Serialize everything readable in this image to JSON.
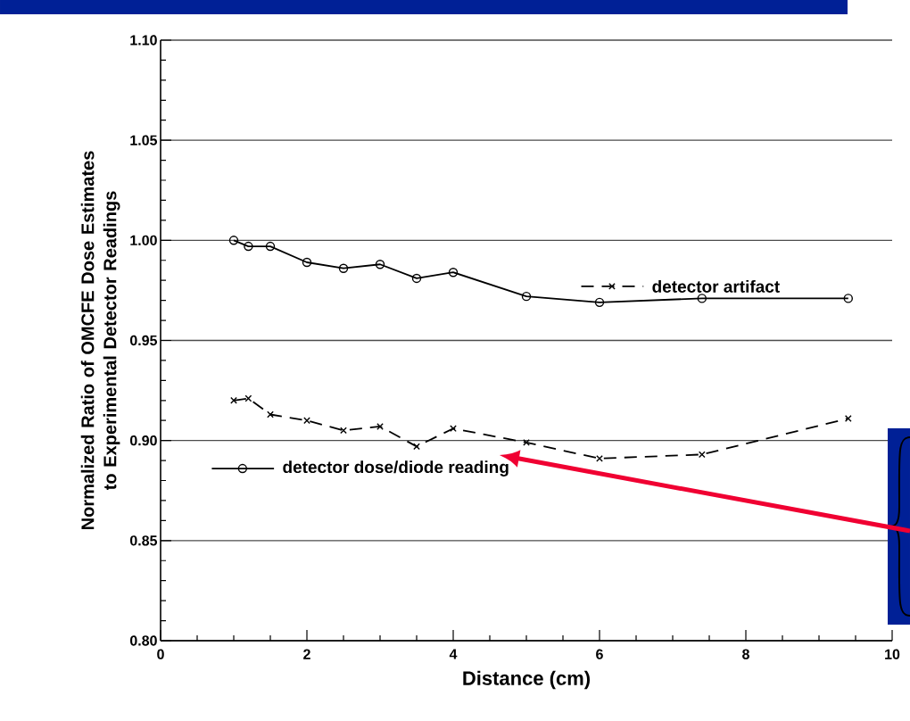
{
  "chart_data": {
    "type": "line",
    "xlabel": "Distance (cm)",
    "ylabel": "Normalized Ratio of OMCFE Dose Estimates to Experimental Detector Readings",
    "x": [
      1.0,
      1.2,
      1.5,
      2.0,
      2.5,
      3.0,
      3.5,
      4.0,
      5.0,
      6.0,
      7.4,
      9.4
    ],
    "series": [
      {
        "name": "detector dose/diode reading",
        "color": "#000000",
        "marker": "circle",
        "line_style": "solid",
        "values": [
          1.0,
          0.997,
          0.997,
          0.989,
          0.986,
          0.988,
          0.981,
          0.984,
          0.972,
          0.969,
          0.971,
          0.971
        ]
      },
      {
        "name": "detector artifact",
        "color": "#000000",
        "marker": "cross",
        "line_style": "dashed",
        "values": [
          0.92,
          0.921,
          0.913,
          0.91,
          0.905,
          0.907,
          0.897,
          0.906,
          0.899,
          0.891,
          0.893,
          0.911
        ]
      }
    ],
    "xlim": [
      0,
      10
    ],
    "xticks": [
      0,
      2,
      4,
      6,
      8,
      10
    ],
    "ylim": [
      0.8,
      1.1
    ],
    "yticks": [
      {
        "value": 0.8,
        "label": "0.80"
      },
      {
        "value": 0.85,
        "label": "0.85"
      },
      {
        "value": 0.9,
        "label": "0.90"
      },
      {
        "value": 0.95,
        "label": "0.95"
      },
      {
        "value": 1.0,
        "label": "1.00"
      },
      {
        "value": 1.05,
        "label": "1.05"
      },
      {
        "value": 1.1,
        "label": "1.10"
      }
    ],
    "grid": "y",
    "legend": "center"
  }
}
